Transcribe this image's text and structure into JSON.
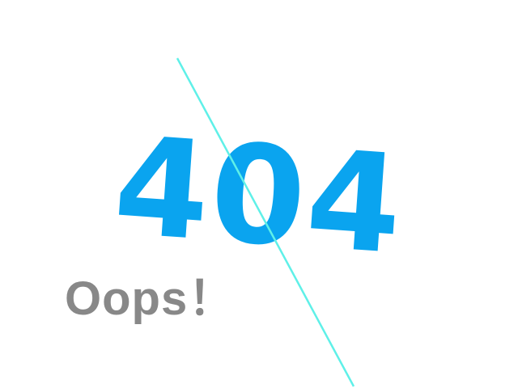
{
  "error": {
    "code": "404",
    "message": "Oops！"
  },
  "colors": {
    "background": "#ffffff",
    "code": "#0aa4ef",
    "message": "#888888",
    "line": "#5ff0e8"
  }
}
